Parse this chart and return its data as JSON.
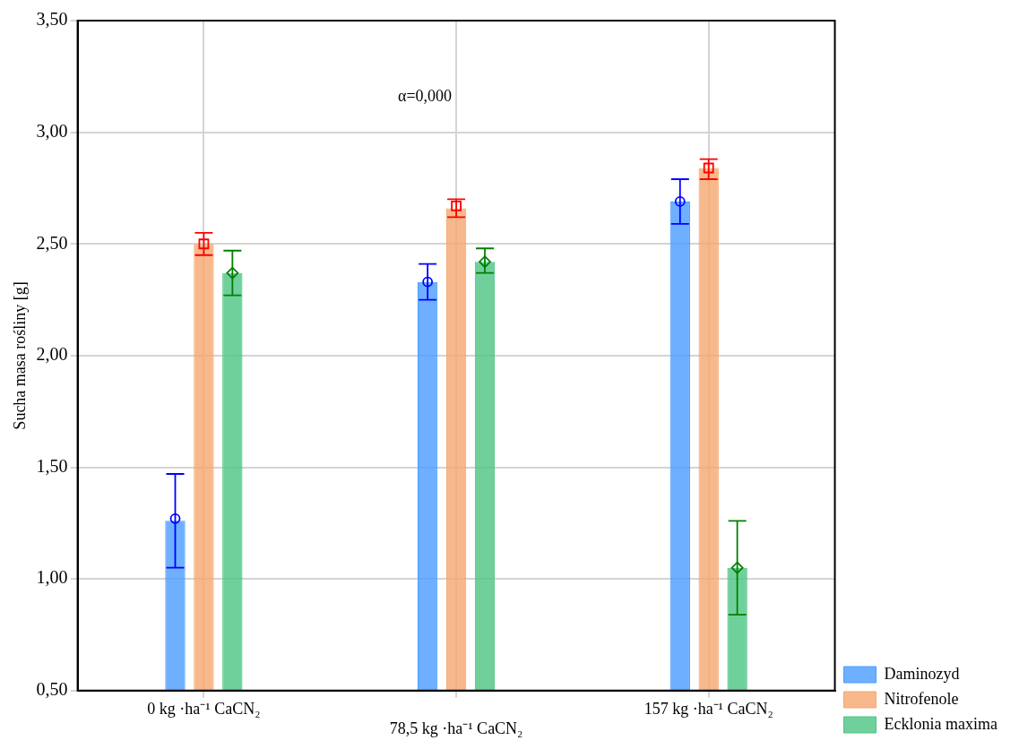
{
  "chart_data": {
    "type": "bar",
    "ylabel": "Sucha masa rośliny [g]",
    "annotations": [
      "α=0,000"
    ],
    "categories": [
      "0 kg ·ha⁻¹ CaCN₂",
      "78,5 kg ·ha⁻¹ CaCN₂",
      "157 kg ·ha⁻¹ CaCN₂"
    ],
    "series": [
      {
        "name": "Daminozyd",
        "color": "#4a9cff",
        "values": [
          1.26,
          2.33,
          2.69
        ],
        "errors": [
          [
            1.05,
            1.47
          ],
          [
            2.25,
            2.41
          ],
          [
            2.59,
            2.79
          ]
        ]
      },
      {
        "name": "Nitrofenole",
        "color": "#f5a86e",
        "values": [
          2.5,
          2.66,
          2.84
        ],
        "errors": [
          [
            2.45,
            2.55
          ],
          [
            2.62,
            2.7
          ],
          [
            2.79,
            2.88
          ]
        ]
      },
      {
        "name": "Ecklonia maxima",
        "color": "#4cc483",
        "values": [
          2.37,
          2.42,
          1.05
        ],
        "errors": [
          [
            2.27,
            2.47
          ],
          [
            2.37,
            2.48
          ],
          [
            0.84,
            1.26
          ]
        ]
      },
      {
        "type": "scatter",
        "color": "#0000ff",
        "marker": "circle",
        "x": [
          "0 kg ·ha⁻¹ CaCN₂",
          "78,5 kg ·ha⁻¹ CaCN₂",
          "157 kg ·ha⁻¹ CaCN₂"
        ],
        "values": [
          1.27,
          2.33,
          2.69
        ]
      },
      {
        "type": "scatter",
        "color": "#ff0000",
        "marker": "square",
        "x": [
          "0 kg ·ha⁻¹ CaCN₂",
          "78,5 kg ·ha⁻¹ CaCN₂",
          "157 kg ·ha⁻¹ CaCN₂"
        ],
        "values": [
          2.5,
          2.67,
          2.84
        ]
      },
      {
        "type": "scatter",
        "color": "#008000",
        "marker": "diamond",
        "x": [
          "0 kg ·ha⁻¹ CaCN₂",
          "78,5 kg ·ha⁻¹ CaCN₂",
          "157 kg ·ha⁻¹ CaCN₂"
        ],
        "values": [
          2.37,
          2.42,
          1.05
        ]
      }
    ],
    "ylim": [
      0.5,
      3.5
    ],
    "yticks": [
      {
        "value": 0.5,
        "label": "0,50"
      },
      {
        "value": 1,
        "label": "1,00"
      },
      {
        "value": 1.5,
        "label": "1,50"
      },
      {
        "value": 2,
        "label": "2,00"
      },
      {
        "value": 2.5,
        "label": "2,50"
      },
      {
        "value": 3,
        "label": "3,00"
      },
      {
        "value": 3.5,
        "label": "3,50"
      }
    ],
    "grid": true,
    "legend": "bottom right"
  }
}
